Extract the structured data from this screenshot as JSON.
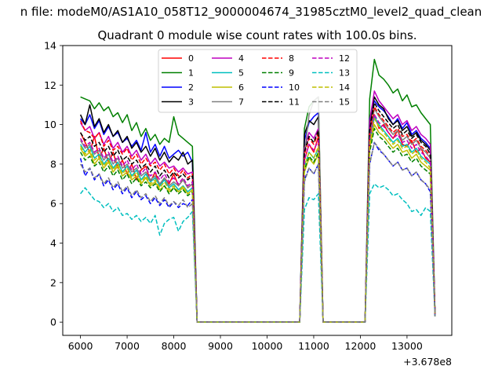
{
  "figure": {
    "suptitle": "n file: modeM0/AS1A10_058T12_9000004674_31985cztM0_level2_quad_clean",
    "title": "Quadrant 0 module wise count rates with 100.0s bins.",
    "x_offset_label": "+3.678e8"
  },
  "chart_data": {
    "type": "line",
    "title": "Quadrant 0 module wise count rates with 100.0s bins.",
    "xlabel": "",
    "ylabel": "",
    "x_offset": 367800000,
    "xlim": [
      5620,
      13960
    ],
    "ylim": [
      -0.67,
      14
    ],
    "xticks": [
      6000,
      7000,
      8000,
      9000,
      10000,
      11000,
      12000,
      13000
    ],
    "yticks": [
      0,
      2,
      4,
      6,
      8,
      10,
      12,
      14
    ],
    "grid": false,
    "legend": {
      "placement": "top-center",
      "columns": 4
    },
    "x": [
      6000,
      6100,
      6200,
      6300,
      6400,
      6500,
      6600,
      6700,
      6800,
      6900,
      7000,
      7100,
      7200,
      7300,
      7400,
      7500,
      7600,
      7700,
      7800,
      7900,
      8000,
      8100,
      8200,
      8300,
      8400,
      8500,
      8600,
      8700,
      10600,
      10700,
      10800,
      10900,
      11000,
      11100,
      11200,
      11300,
      12000,
      12100,
      12200,
      12300,
      12400,
      12500,
      12600,
      12700,
      12800,
      12900,
      13000,
      13100,
      13200,
      13300,
      13400,
      13500,
      13600
    ],
    "series": [
      {
        "name": "0",
        "color": "#ff0000",
        "style": "solid",
        "values": [
          9.6,
          9.1,
          8.6,
          9.4,
          8.3,
          8.8,
          8.1,
          8.6,
          7.8,
          8.2,
          7.5,
          8.0,
          7.2,
          7.7,
          7.9,
          7.1,
          7.6,
          6.9,
          7.3,
          7.0,
          7.5,
          6.9,
          7.2,
          6.8,
          7.0,
          0.0,
          0.0,
          0.0,
          0.0,
          0.0,
          8.2,
          9.0,
          8.6,
          9.4,
          0.0,
          0.0,
          0.0,
          0.0,
          9.2,
          10.5,
          9.8,
          10.0,
          9.6,
          9.3,
          9.7,
          9.0,
          8.9,
          9.2,
          8.6,
          8.8,
          8.3,
          8.1,
          0.4
        ]
      },
      {
        "name": "1",
        "color": "#008000",
        "style": "solid",
        "values": [
          11.4,
          11.3,
          11.2,
          10.8,
          11.1,
          10.7,
          10.9,
          10.4,
          10.6,
          10.1,
          10.5,
          9.7,
          10.1,
          9.4,
          9.8,
          9.2,
          9.5,
          9.0,
          9.3,
          9.1,
          10.4,
          9.5,
          9.3,
          9.1,
          8.9,
          0.0,
          0.0,
          0.0,
          0.0,
          0.0,
          9.8,
          10.9,
          11.2,
          11.4,
          0.0,
          0.0,
          0.0,
          0.0,
          11.3,
          13.3,
          12.5,
          12.3,
          12.0,
          11.6,
          11.8,
          11.2,
          11.5,
          10.9,
          11.0,
          10.6,
          10.3,
          10.0,
          0.5
        ]
      },
      {
        "name": "2",
        "color": "#0000ff",
        "style": "solid",
        "values": [
          10.3,
          10.0,
          10.5,
          9.8,
          10.2,
          9.5,
          9.9,
          9.4,
          9.6,
          9.1,
          9.3,
          8.9,
          9.2,
          8.7,
          9.6,
          8.6,
          9.0,
          8.4,
          8.9,
          8.3,
          8.5,
          8.7,
          8.4,
          8.6,
          8.1,
          0.0,
          0.0,
          0.0,
          0.0,
          0.0,
          9.2,
          10.1,
          10.4,
          10.6,
          0.0,
          0.0,
          0.0,
          0.0,
          10.3,
          11.2,
          10.9,
          10.7,
          10.4,
          10.0,
          10.3,
          9.8,
          10.1,
          9.5,
          9.7,
          9.3,
          9.1,
          8.8,
          0.4
        ]
      },
      {
        "name": "3",
        "color": "#000000",
        "style": "solid",
        "values": [
          10.5,
          10.0,
          11.0,
          9.9,
          10.3,
          9.6,
          10.0,
          9.4,
          9.7,
          9.1,
          9.4,
          8.8,
          9.1,
          8.6,
          8.9,
          8.4,
          8.8,
          8.2,
          8.6,
          8.1,
          8.4,
          8.2,
          8.6,
          8.0,
          8.2,
          0.0,
          0.0,
          0.0,
          0.0,
          0.0,
          9.5,
          10.2,
          10.0,
          10.4,
          0.0,
          0.0,
          0.0,
          0.0,
          10.0,
          11.4,
          11.0,
          10.8,
          10.3,
          10.0,
          10.2,
          9.7,
          9.9,
          9.4,
          9.6,
          9.2,
          9.0,
          8.7,
          0.4
        ]
      },
      {
        "name": "4",
        "color": "#bf00bf",
        "style": "solid",
        "values": [
          10.1,
          9.7,
          9.9,
          9.3,
          9.6,
          9.0,
          9.4,
          8.8,
          9.1,
          8.6,
          8.9,
          8.4,
          8.7,
          8.2,
          8.5,
          8.0,
          8.3,
          7.9,
          8.1,
          7.8,
          7.9,
          7.6,
          7.8,
          7.5,
          7.6,
          0.0,
          0.0,
          0.0,
          0.0,
          0.0,
          8.8,
          9.6,
          9.3,
          9.8,
          0.0,
          0.0,
          0.0,
          0.0,
          10.2,
          11.7,
          11.2,
          10.9,
          10.6,
          10.3,
          10.5,
          10.0,
          10.2,
          9.7,
          9.9,
          9.5,
          9.3,
          9.0,
          0.4
        ]
      },
      {
        "name": "5",
        "color": "#00bfbf",
        "style": "solid",
        "values": [
          9.0,
          8.6,
          8.9,
          8.3,
          8.5,
          8.0,
          8.3,
          7.8,
          8.1,
          7.6,
          7.9,
          7.4,
          7.7,
          7.2,
          7.5,
          7.1,
          7.3,
          6.9,
          7.2,
          6.8,
          7.0,
          6.7,
          6.9,
          6.6,
          6.8,
          0.0,
          0.0,
          0.0,
          0.0,
          0.0,
          7.9,
          8.6,
          8.3,
          8.8,
          0.0,
          0.0,
          0.0,
          0.0,
          9.0,
          10.4,
          10.0,
          9.7,
          9.4,
          9.1,
          9.3,
          8.9,
          9.0,
          8.6,
          8.8,
          8.4,
          8.2,
          8.0,
          0.3
        ]
      },
      {
        "name": "6",
        "color": "#bfbf00",
        "style": "solid",
        "values": [
          8.8,
          8.4,
          8.6,
          8.0,
          8.3,
          7.8,
          8.1,
          7.6,
          7.9,
          7.4,
          7.6,
          7.2,
          7.4,
          7.0,
          7.3,
          6.9,
          7.1,
          6.7,
          6.9,
          6.6,
          6.8,
          6.6,
          6.8,
          6.5,
          6.7,
          0.0,
          0.0,
          0.0,
          0.0,
          0.0,
          7.6,
          8.3,
          8.0,
          8.5,
          0.0,
          0.0,
          0.0,
          0.0,
          8.8,
          10.0,
          9.6,
          9.4,
          9.1,
          8.8,
          9.0,
          8.6,
          8.7,
          8.3,
          8.5,
          8.1,
          7.9,
          7.7,
          0.3
        ]
      },
      {
        "name": "7",
        "color": "#808080",
        "style": "solid",
        "values": [
          9.2,
          8.8,
          9.0,
          8.5,
          8.7,
          8.2,
          8.5,
          8.0,
          8.3,
          7.8,
          8.0,
          7.6,
          7.8,
          7.4,
          7.6,
          7.2,
          7.4,
          7.0,
          7.3,
          6.9,
          7.1,
          6.9,
          7.2,
          6.8,
          7.0,
          0.0,
          0.0,
          0.0,
          0.0,
          0.0,
          8.5,
          10.5,
          11.2,
          11.4,
          0.0,
          0.0,
          0.0,
          0.0,
          9.3,
          10.8,
          10.4,
          10.1,
          9.8,
          9.5,
          9.7,
          9.2,
          9.4,
          9.0,
          9.2,
          8.8,
          8.6,
          8.3,
          0.3
        ]
      },
      {
        "name": "8",
        "color": "#ff0000",
        "style": "dashed",
        "values": [
          10.2,
          9.7,
          9.6,
          9.3,
          9.6,
          8.9,
          9.2,
          8.7,
          8.9,
          8.5,
          8.8,
          8.2,
          8.5,
          8.0,
          8.3,
          7.9,
          8.1,
          7.7,
          8.0,
          7.5,
          7.8,
          7.4,
          7.7,
          7.3,
          7.5,
          0.0,
          0.0,
          0.0,
          0.0,
          0.0,
          8.5,
          9.3,
          9.0,
          9.6,
          0.0,
          0.0,
          0.0,
          0.0,
          9.6,
          10.9,
          10.5,
          10.2,
          9.9,
          9.6,
          9.8,
          9.4,
          9.5,
          9.1,
          9.3,
          8.9,
          8.7,
          8.4,
          0.4
        ]
      },
      {
        "name": "9",
        "color": "#008000",
        "style": "dashed",
        "values": [
          8.6,
          8.2,
          8.4,
          7.9,
          8.1,
          7.6,
          7.9,
          7.4,
          7.7,
          7.2,
          7.5,
          7.0,
          7.3,
          6.9,
          7.1,
          6.8,
          7.0,
          6.6,
          6.9,
          6.5,
          6.8,
          6.5,
          6.7,
          6.4,
          6.6,
          0.0,
          0.0,
          0.0,
          0.0,
          0.0,
          7.7,
          8.4,
          8.1,
          8.6,
          0.0,
          0.0,
          0.0,
          0.0,
          8.6,
          9.8,
          9.4,
          9.2,
          8.9,
          8.6,
          8.8,
          8.4,
          8.5,
          8.1,
          8.3,
          7.9,
          7.7,
          7.5,
          0.3
        ]
      },
      {
        "name": "10",
        "color": "#0000ff",
        "style": "dashed",
        "values": [
          8.3,
          7.4,
          7.8,
          7.2,
          7.5,
          6.9,
          7.2,
          6.7,
          7.0,
          6.5,
          6.8,
          6.3,
          6.6,
          6.2,
          6.4,
          6.0,
          6.3,
          5.9,
          6.2,
          5.8,
          6.1,
          5.8,
          6.0,
          5.9,
          6.2,
          0.0,
          0.0,
          0.0,
          0.0,
          0.0,
          7.2,
          7.8,
          7.5,
          8.0,
          0.0,
          0.0,
          0.0,
          0.0,
          8.0,
          9.1,
          8.7,
          8.5,
          8.2,
          7.9,
          8.1,
          7.7,
          7.8,
          7.4,
          7.6,
          7.2,
          7.0,
          6.6,
          0.3
        ]
      },
      {
        "name": "11",
        "color": "#000000",
        "style": "dashed",
        "values": [
          9.6,
          9.2,
          9.4,
          8.9,
          9.1,
          8.6,
          8.9,
          8.4,
          8.7,
          8.2,
          8.4,
          8.0,
          8.2,
          7.8,
          8.0,
          7.6,
          7.9,
          7.4,
          7.7,
          7.3,
          7.6,
          7.3,
          7.5,
          7.2,
          7.4,
          0.0,
          0.0,
          0.0,
          0.0,
          0.0,
          8.6,
          9.4,
          9.1,
          9.7,
          0.0,
          0.0,
          0.0,
          0.0,
          9.7,
          11.1,
          10.7,
          10.4,
          10.1,
          9.8,
          10.0,
          9.5,
          9.7,
          9.3,
          9.5,
          9.1,
          8.9,
          8.5,
          0.4
        ]
      },
      {
        "name": "12",
        "color": "#bf00bf",
        "style": "dashed",
        "values": [
          9.3,
          8.9,
          9.1,
          8.6,
          8.8,
          8.3,
          8.6,
          8.1,
          8.4,
          7.9,
          8.2,
          7.7,
          8.0,
          7.5,
          7.8,
          7.4,
          7.6,
          7.2,
          7.5,
          7.1,
          7.3,
          7.0,
          7.3,
          6.9,
          7.1,
          0.0,
          0.0,
          0.0,
          0.0,
          0.0,
          8.2,
          9.0,
          8.7,
          9.2,
          0.0,
          0.0,
          0.0,
          0.0,
          9.2,
          10.5,
          10.1,
          9.9,
          9.6,
          9.3,
          9.5,
          9.1,
          9.2,
          8.8,
          9.0,
          8.6,
          8.4,
          8.1,
          0.3
        ]
      },
      {
        "name": "13",
        "color": "#00bfbf",
        "style": "dashed",
        "values": [
          6.5,
          6.8,
          6.5,
          6.2,
          6.1,
          5.8,
          6.0,
          5.6,
          5.8,
          5.4,
          5.5,
          5.2,
          5.4,
          5.1,
          5.3,
          5.0,
          5.4,
          4.4,
          5.0,
          5.2,
          5.3,
          4.6,
          5.1,
          5.3,
          5.6,
          0.0,
          0.0,
          0.0,
          0.0,
          0.0,
          5.7,
          6.3,
          6.2,
          6.5,
          0.0,
          0.0,
          0.0,
          0.0,
          6.5,
          7.0,
          6.8,
          6.9,
          6.7,
          6.4,
          6.5,
          6.2,
          6.0,
          5.6,
          5.7,
          5.4,
          5.8,
          5.6,
          0.3
        ]
      },
      {
        "name": "14",
        "color": "#bfbf00",
        "style": "dashed",
        "values": [
          8.9,
          8.5,
          8.7,
          8.2,
          8.4,
          7.9,
          8.2,
          7.7,
          8.0,
          7.5,
          7.8,
          7.3,
          7.6,
          7.1,
          7.4,
          7.0,
          7.2,
          6.8,
          7.1,
          6.7,
          6.9,
          6.6,
          6.9,
          6.5,
          6.7,
          0.0,
          0.0,
          0.0,
          0.0,
          0.0,
          7.9,
          8.6,
          8.3,
          8.9,
          0.0,
          0.0,
          0.0,
          0.0,
          9.0,
          10.3,
          9.9,
          9.6,
          9.3,
          9.0,
          9.2,
          8.8,
          8.9,
          8.5,
          8.7,
          8.3,
          8.1,
          7.8,
          0.3
        ]
      },
      {
        "name": "15",
        "color": "#808080",
        "style": "dashed",
        "values": [
          8.0,
          7.6,
          7.8,
          7.3,
          7.5,
          7.0,
          7.3,
          6.8,
          7.1,
          6.6,
          6.9,
          6.4,
          6.7,
          6.3,
          6.5,
          6.1,
          6.4,
          6.0,
          6.3,
          5.9,
          6.1,
          5.9,
          6.2,
          5.8,
          6.0,
          0.0,
          0.0,
          0.0,
          0.0,
          0.0,
          7.1,
          7.8,
          7.5,
          8.0,
          0.0,
          0.0,
          0.0,
          0.0,
          8.0,
          9.1,
          8.8,
          8.5,
          8.2,
          7.9,
          8.1,
          7.7,
          7.8,
          7.4,
          7.6,
          7.2,
          7.0,
          6.7,
          0.3
        ]
      }
    ]
  }
}
